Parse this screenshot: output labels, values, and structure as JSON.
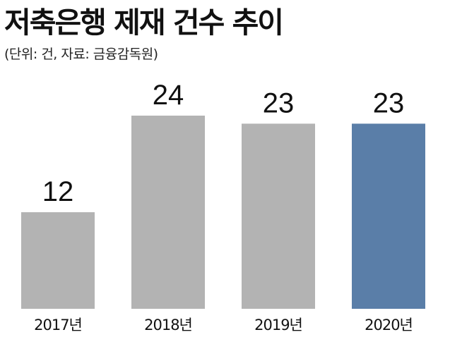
{
  "chart_data": {
    "type": "bar",
    "title": "저축은행 제재 건수 추이",
    "subtitle": "(단위: 건, 자료: 금융감독원)",
    "categories": [
      "2017년",
      "2018년",
      "2019년",
      "2020년"
    ],
    "values": [
      12,
      24,
      23,
      23
    ],
    "ylim": [
      0,
      24
    ],
    "grid": false,
    "legend": "none",
    "colors": {
      "default_bar": "#b3b3b3",
      "highlight_bar": "#5a7ea8"
    },
    "highlight_index": 3
  }
}
